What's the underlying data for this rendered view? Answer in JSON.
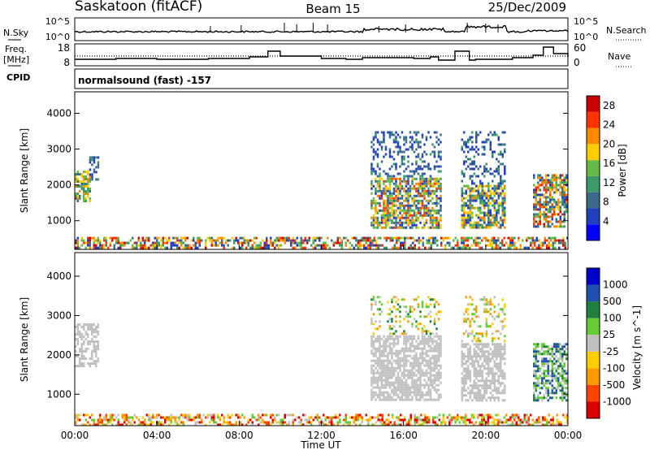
{
  "header": {
    "station": "Saskatoon (fitACF)",
    "beam": "Beam 15",
    "date": "25/Dec/2009"
  },
  "panels": {
    "nsky": {
      "left_label": "N.Sky",
      "right_label": "N.Search",
      "left_ticks": [
        "10^5",
        "10^0"
      ],
      "right_ticks": [
        "10^5",
        "10^0"
      ]
    },
    "freq": {
      "left_label_1": "Freq.",
      "left_label_2": "[MHz]",
      "right_label": "Nave",
      "left_ticks": [
        "18",
        "8"
      ],
      "right_ticks": [
        "60",
        "0"
      ]
    },
    "cpid": {
      "label": "CPID",
      "text": "normalsound (fast)  -157"
    }
  },
  "chart_data": [
    {
      "type": "heatmap",
      "name": "power",
      "title": "",
      "xlabel": "",
      "ylabel": "Slant Range [km]",
      "colorbar_label": "Power [dB]",
      "colorbar_ticks": [
        "4",
        "8",
        "12",
        "16",
        "20",
        "24",
        "28"
      ],
      "colorbar_range": [
        0,
        30
      ],
      "colormap": [
        "#0000ff",
        "#2040c0",
        "#3c6a8c",
        "#3a9a6a",
        "#66bb44",
        "#ffcc00",
        "#ff8800",
        "#ff3300",
        "#cc0000"
      ],
      "xlim": [
        0,
        24
      ],
      "ylim": [
        200,
        4600
      ],
      "yticks": [
        1000,
        2000,
        3000,
        4000
      ],
      "blocks": [
        {
          "t0": 0.0,
          "t1": 24.0,
          "r0": 200,
          "r1": 550,
          "v": [
            4,
            30
          ],
          "d": 0.55
        },
        {
          "t0": 0.0,
          "t1": 0.8,
          "r0": 1500,
          "r1": 2400,
          "v": [
            8,
            22
          ],
          "d": 0.7
        },
        {
          "t0": 0.7,
          "t1": 1.2,
          "r0": 2100,
          "r1": 2800,
          "v": [
            4,
            12
          ],
          "d": 0.5
        },
        {
          "t0": 14.4,
          "t1": 17.9,
          "r0": 800,
          "r1": 2200,
          "v": [
            6,
            28
          ],
          "d": 0.7
        },
        {
          "t0": 14.4,
          "t1": 17.9,
          "r0": 2200,
          "r1": 3500,
          "v": [
            4,
            12
          ],
          "d": 0.3
        },
        {
          "t0": 18.8,
          "t1": 21.0,
          "r0": 800,
          "r1": 2000,
          "v": [
            6,
            26
          ],
          "d": 0.7
        },
        {
          "t0": 18.8,
          "t1": 21.0,
          "r0": 2000,
          "r1": 3500,
          "v": [
            4,
            12
          ],
          "d": 0.3
        },
        {
          "t0": 22.3,
          "t1": 24.0,
          "r0": 800,
          "r1": 2300,
          "v": [
            4,
            28
          ],
          "d": 0.65
        }
      ]
    },
    {
      "type": "heatmap",
      "name": "velocity",
      "title": "",
      "xlabel": "Time UT",
      "ylabel": "Slant Range [km]",
      "colorbar_label": "Velocity [m s^-1]",
      "colorbar_ticks": [
        "1000",
        "500",
        "100",
        "25",
        "-25",
        "-100",
        "-500",
        "-1000"
      ],
      "colormap": [
        "#0000cc",
        "#2050b0",
        "#208040",
        "#66cc33",
        "#c0c0c0",
        "#ffcc00",
        "#ff9900",
        "#ff4400",
        "#dd0000"
      ],
      "xlim": [
        0,
        24
      ],
      "ylim": [
        200,
        4600
      ],
      "xticks": [
        "00:00",
        "04:00",
        "08:00",
        "12:00",
        "16:00",
        "20:00",
        "00:00"
      ],
      "yticks": [
        1000,
        2000,
        3000,
        4000
      ],
      "blocks": [
        {
          "t0": 0.0,
          "t1": 24.0,
          "r0": 200,
          "r1": 500,
          "v": [
            3,
            8
          ],
          "d": 0.5
        },
        {
          "t0": 0.0,
          "t1": 1.2,
          "r0": 1700,
          "r1": 2800,
          "v": [
            4,
            4
          ],
          "d": 0.6
        },
        {
          "t0": 14.4,
          "t1": 17.9,
          "r0": 800,
          "r1": 2500,
          "v": [
            4,
            4
          ],
          "d": 0.7
        },
        {
          "t0": 14.4,
          "t1": 17.9,
          "r0": 2500,
          "r1": 3500,
          "v": [
            2,
            6
          ],
          "d": 0.25
        },
        {
          "t0": 18.8,
          "t1": 21.0,
          "r0": 800,
          "r1": 2300,
          "v": [
            4,
            4
          ],
          "d": 0.7
        },
        {
          "t0": 18.8,
          "t1": 21.0,
          "r0": 2300,
          "r1": 3500,
          "v": [
            3,
            6
          ],
          "d": 0.25
        },
        {
          "t0": 22.3,
          "t1": 24.0,
          "r0": 800,
          "r1": 2300,
          "v": [
            1,
            4
          ],
          "d": 0.6
        }
      ]
    }
  ]
}
